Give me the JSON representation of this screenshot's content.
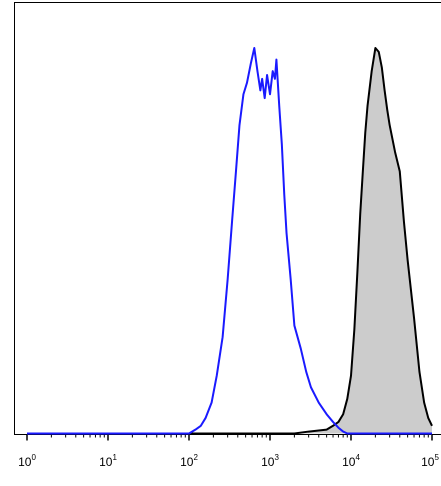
{
  "chart_data": {
    "type": "area",
    "title": "",
    "xlabel": "",
    "ylabel": "",
    "x_scale": "log",
    "xlim": [
      1,
      100000
    ],
    "ylim": [
      0,
      100
    ],
    "grid": false,
    "legend": "none",
    "tick_labels": [
      {
        "base": "10",
        "exp": "0",
        "value": 1
      },
      {
        "base": "10",
        "exp": "1",
        "value": 10
      },
      {
        "base": "10",
        "exp": "2",
        "value": 100
      },
      {
        "base": "10",
        "exp": "3",
        "value": 1000
      },
      {
        "base": "10",
        "exp": "4",
        "value": 10000
      },
      {
        "base": "10",
        "exp": "5",
        "value": 100000
      }
    ],
    "series": [
      {
        "style": "line",
        "color": "#1a1aff",
        "x": [
          1,
          100,
          120,
          140,
          160,
          190,
          220,
          260,
          300,
          340,
          380,
          420,
          470,
          520,
          580,
          640,
          700,
          760,
          800,
          860,
          920,
          1000,
          1080,
          1150,
          1200,
          1300,
          1400,
          1500,
          1600,
          1800,
          2000,
          2400,
          2800,
          3200,
          4000,
          5000,
          6000,
          7000,
          8000,
          9000,
          10000,
          12000,
          100000
        ],
        "y": [
          0,
          0,
          1,
          2,
          4,
          8,
          15,
          25,
          40,
          55,
          68,
          80,
          88,
          91,
          96,
          100,
          94,
          89,
          92,
          87,
          93,
          88,
          94,
          92,
          97,
          85,
          75,
          62,
          52,
          40,
          28,
          22,
          16,
          12,
          8,
          5,
          3,
          1.5,
          0.5,
          0,
          0,
          0,
          0
        ]
      },
      {
        "style": "filled",
        "color": "#000000",
        "fill": "#cccccc",
        "x": [
          1,
          2000,
          3000,
          5000,
          6000,
          7000,
          8000,
          9000,
          10000,
          11000,
          12000,
          13000,
          14000,
          15000,
          16000,
          18000,
          20000,
          22000,
          24000,
          26000,
          28000,
          30000,
          35000,
          40000,
          45000,
          50000,
          60000,
          70000,
          80000,
          90000,
          100000
        ],
        "y": [
          0,
          0,
          0.5,
          1,
          2,
          3,
          5,
          9,
          15,
          27,
          42,
          57,
          68,
          78,
          85,
          94,
          100,
          99,
          95,
          89,
          84,
          80,
          73,
          68,
          55,
          45,
          30,
          16,
          8,
          4,
          2
        ]
      }
    ]
  }
}
